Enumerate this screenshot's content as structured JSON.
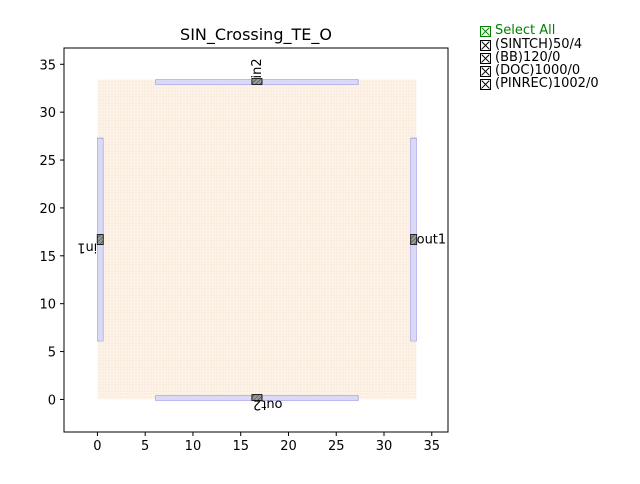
{
  "colors": {
    "accent_green": "#008000",
    "die_fill": "#fbeee0",
    "waveguide_blue": "#3a3ad0",
    "pin_gray": "#6e6e6e"
  },
  "legend": {
    "select_all": "Select All",
    "layers": [
      "(SINTCH)50/4",
      "(BB)120/0",
      "(DOC)1000/0",
      "(PINREC)1002/0"
    ],
    "icon": "checkbox-checked-icon"
  },
  "chart_data": {
    "type": "layout",
    "title": "SIN_Crossing_TE_O",
    "xlabel": "",
    "ylabel": "",
    "xlim": [
      -3.5,
      36.7
    ],
    "ylim": [
      -3.4,
      36.7
    ],
    "xticks": [
      0,
      5,
      10,
      15,
      20,
      25,
      30,
      35
    ],
    "yticks": [
      0,
      5,
      10,
      15,
      20,
      25,
      30,
      35
    ],
    "grid": false,
    "die_outline": [
      0,
      0,
      33.4,
      33.4
    ],
    "waveguides": [
      {
        "x0": 6.1,
        "y0": 33.0,
        "x1": 27.3,
        "y1": 33.4
      },
      {
        "x0": 6.1,
        "y0": 0.0,
        "x1": 27.3,
        "y1": 0.4
      },
      {
        "x0": 0.0,
        "y0": 6.1,
        "x1": 0.6,
        "y1": 27.3
      },
      {
        "x0": 32.8,
        "y0": 6.1,
        "x1": 33.4,
        "y1": 27.3
      }
    ],
    "pins": [
      {
        "name": "in1",
        "x": 0.3,
        "y": 16.7,
        "orientation": "left"
      },
      {
        "name": "out1",
        "x": 33.1,
        "y": 16.7,
        "orientation": "right"
      },
      {
        "name": "in2",
        "x": 16.7,
        "y": 33.2,
        "orientation": "top"
      },
      {
        "name": "out2",
        "x": 16.7,
        "y": 0.2,
        "orientation": "bottom"
      }
    ]
  }
}
